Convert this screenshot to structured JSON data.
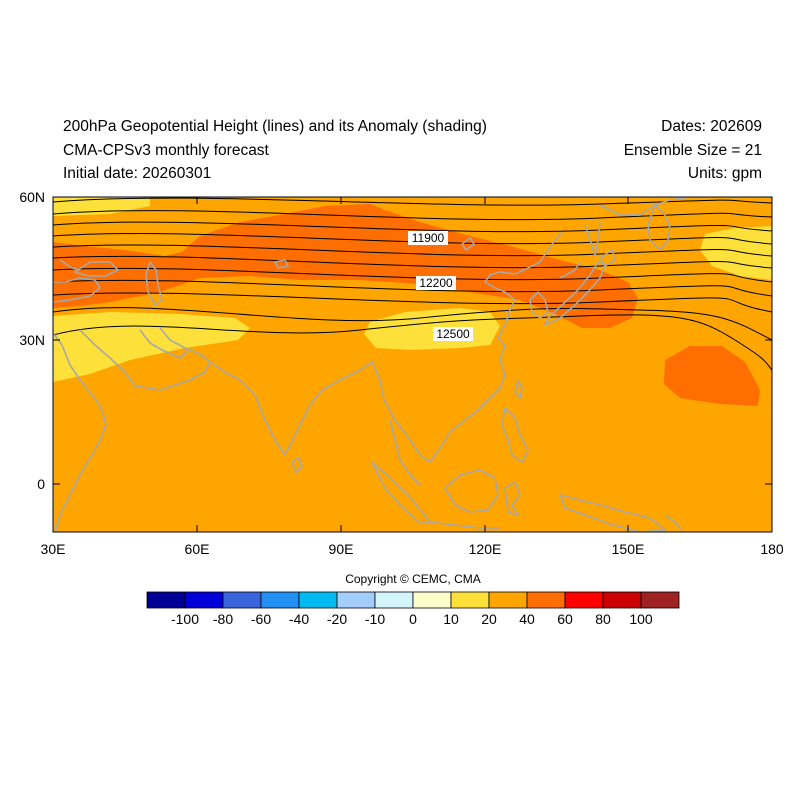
{
  "header": {
    "title": "200hPa Geopotential Height (lines) and its Anomaly (shading)",
    "subtitle": "CMA-CPSv3 monthly forecast",
    "initial_date": "Initial date: 20260301",
    "dates": "Dates: 202609",
    "ensemble": "Ensemble Size = 21",
    "units": "Units: gpm"
  },
  "axes": {
    "x_ticks": [
      "30E",
      "60E",
      "90E",
      "120E",
      "150E",
      "180"
    ],
    "y_ticks": [
      "60N",
      "30N",
      "0"
    ],
    "lon_range": [
      30,
      180
    ],
    "lat_range": [
      -10,
      60
    ]
  },
  "contours": {
    "labels": [
      "11900",
      "12200",
      "12500"
    ],
    "line_color": "#000000"
  },
  "anomaly_colors": {
    "c0_10": "#ffffcc",
    "c10_20": "#fde13a",
    "c20_40": "#fea500",
    "c40_60": "#fe6e00"
  },
  "copyright": "Copyright © CEMC, CMA",
  "colorbar": {
    "colors": [
      "#000096",
      "#0000d8",
      "#3a64dc",
      "#2290f2",
      "#00bbf2",
      "#a2cdf8",
      "#d4f5fc",
      "#ffffcc",
      "#fde13a",
      "#fea500",
      "#fe6e00",
      "#fe0000",
      "#cc0000",
      "#9e2222"
    ],
    "labels": [
      "-100",
      "-80",
      "-60",
      "-40",
      "-20",
      "-10",
      "0",
      "10",
      "20",
      "40",
      "60",
      "80",
      "100"
    ]
  },
  "coast_color": "#a8a8a8"
}
